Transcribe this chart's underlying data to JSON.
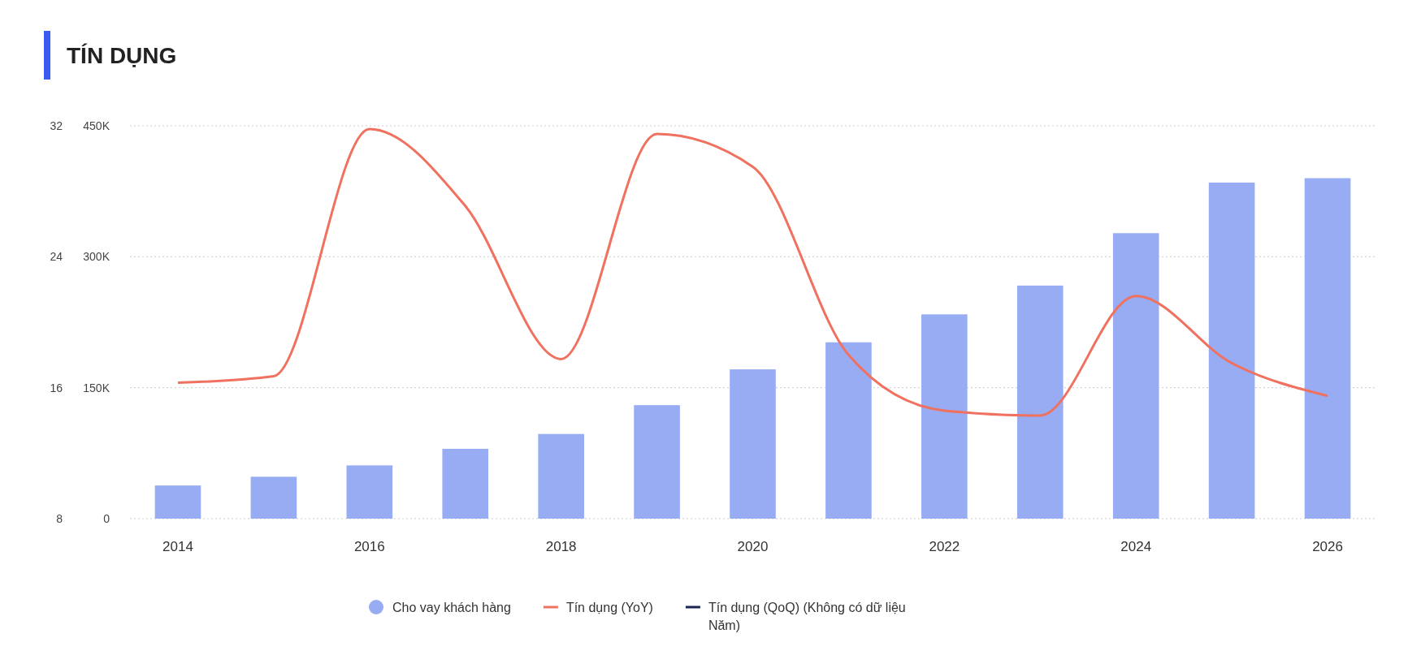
{
  "chart_data": {
    "type": "bar",
    "title": "TÍN DỤNG",
    "categories": [
      "2014",
      null,
      "2016",
      null,
      "2018",
      null,
      "2020",
      null,
      "2022",
      null,
      "2024",
      null,
      "2026"
    ],
    "series": [
      {
        "name": "Cho vay khách hàng",
        "color": "#97acf3",
        "values": [
          38000,
          48000,
          61000,
          80000,
          97000,
          130000,
          171000,
          202000,
          234000,
          267000,
          327000,
          385000,
          390000
        ]
      },
      {
        "name": "Tín dụng (YoY)",
        "type": "line",
        "axis": "y2",
        "color": "#f0715f",
        "values": [
          16.3,
          16.7,
          31.8,
          27.1,
          17.75,
          31.5,
          29.5,
          18.0,
          14.6,
          14.3,
          21.6,
          17.5,
          15.5
        ]
      },
      {
        "name": "Tín dụng (QoQ) (Không có dữ liệu Năm)",
        "type": "line",
        "axis": "y2",
        "color": "#1b2553",
        "values": [
          null,
          null,
          null,
          null,
          null,
          null,
          null,
          null,
          null,
          null,
          null,
          null,
          null
        ]
      }
    ],
    "ylim": [
      0,
      450000
    ],
    "yticks": [
      {
        "value": 0,
        "label": "0"
      },
      {
        "value": 150000,
        "label": "150K"
      },
      {
        "value": 300000,
        "label": "300K"
      },
      {
        "value": 450000,
        "label": "450K"
      }
    ],
    "y2lim": [
      8,
      32
    ],
    "y2ticks": [
      8,
      16,
      24,
      32
    ],
    "grid": "y",
    "legend": "bottom",
    "line_style": "solid",
    "marker": "none"
  }
}
